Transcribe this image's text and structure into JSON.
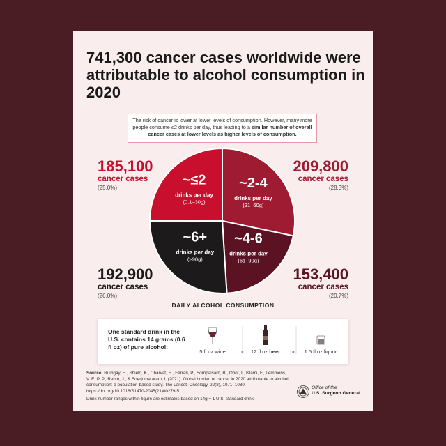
{
  "chart_data": {
    "type": "pie",
    "title": "741,300 cancer cases worldwide were attributable to alcohol consumption in 2020",
    "note": "The risk of cancer is lower at lower levels of consumption. However, many more people consume ≤2 drinks per day, thus leading to a",
    "note_bold": "similar number of overall cancer cases at lower levels as higher levels of consumption.",
    "categories": [
      "~2-4",
      "~4-6",
      "~6+",
      "~≤2"
    ],
    "range_labels": [
      "(31–60g)",
      "(61–90g)",
      "(>90g)",
      "(0.1–30g)"
    ],
    "slice_unit": "drinks per day",
    "values": [
      209800,
      153400,
      192900,
      185100
    ],
    "value_labels": [
      "209,800",
      "153,400",
      "192,900",
      "185,100"
    ],
    "count_unit": "cancer cases",
    "percent_labels": [
      "(28.3%)",
      "(20.7%)",
      "(26.0%)",
      "(25.0%)"
    ],
    "colors": [
      "#9e1b32",
      "#5b1222",
      "#1d1a1b",
      "#c8102e"
    ],
    "xlabel": "DAILY ALCOHOL CONSUMPTION"
  },
  "standard_drink": {
    "intro": "One standard drink in the U.S. contains 14 grams (0.6 fl oz) of pure alcohol:",
    "wine": "5 fl oz wine",
    "beer_amount": "12 fl oz",
    "beer": "beer",
    "liquor": "1.5 fl oz liquor",
    "or": "or"
  },
  "source": {
    "label": "Source:",
    "text": "Rumgay, H., Shield, K., Charvat, H., Ferrari, P., Sornpaisarn, B., Obot, I., Islami, F., Lemmens, V. E. P. P., Rehm, J., & Soerjomataram, I. (2021). Global burden of cancer in 2020 attributable to alcohol consumption: a population-based study. The Lancet. Oncology, 22(8), 1071–1080. https://doi.org/10.1016/S1470-2045(21)00279-5",
    "footnote": "Drink number ranges within figure are estimates based on 14g = 1 U.S. standard drink."
  },
  "logo": {
    "line1": "Office of the",
    "line2": "U.S. Surgeon General"
  }
}
